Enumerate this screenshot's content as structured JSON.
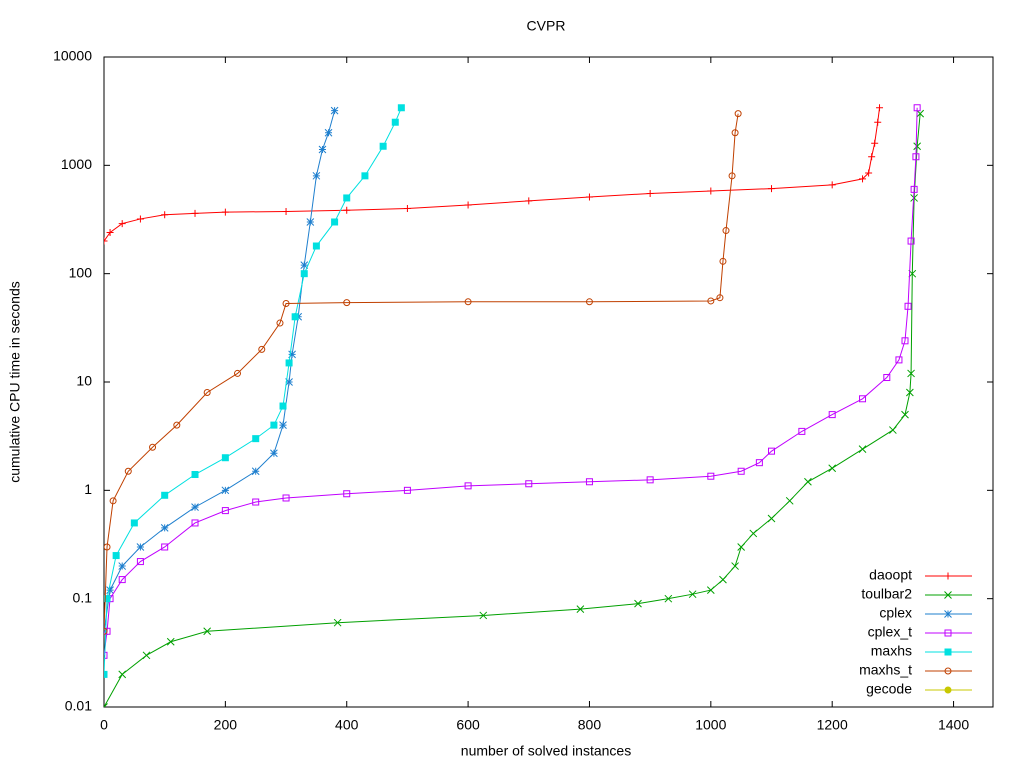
{
  "chart_data": {
    "type": "line",
    "title": "CVPR",
    "x_label": "number of solved instances",
    "y_label": "cumulative CPU time in seconds",
    "xlim": [
      0,
      1465
    ],
    "xticks": [
      0,
      200,
      400,
      600,
      800,
      1000,
      1200,
      1400
    ],
    "ylim": [
      0.01,
      10000
    ],
    "yticks": [
      0.01,
      0.1,
      1,
      10,
      100,
      1000,
      10000
    ],
    "log_y": true,
    "grid": false,
    "legend": "bottom-right",
    "series": [
      {
        "name": "daoopt",
        "color": "#ff0000",
        "marker": "plus",
        "x": [
          0,
          10,
          30,
          60,
          100,
          150,
          200,
          300,
          400,
          500,
          600,
          700,
          800,
          900,
          1000,
          1100,
          1200,
          1250,
          1260,
          1265,
          1270,
          1275,
          1278
        ],
        "values": [
          200,
          240,
          290,
          320,
          350,
          360,
          370,
          375,
          385,
          400,
          430,
          470,
          510,
          550,
          580,
          610,
          660,
          750,
          850,
          1200,
          1600,
          2500,
          3400
        ]
      },
      {
        "name": "toulbar2",
        "color": "#00a000",
        "marker": "cross",
        "x": [
          0,
          30,
          70,
          110,
          170,
          385,
          625,
          785,
          880,
          930,
          970,
          1000,
          1020,
          1040,
          1050,
          1070,
          1100,
          1130,
          1160,
          1200,
          1250,
          1300,
          1320,
          1328,
          1330,
          1332,
          1335,
          1340,
          1345
        ],
        "values": [
          0.01,
          0.02,
          0.03,
          0.04,
          0.05,
          0.06,
          0.07,
          0.08,
          0.09,
          0.1,
          0.11,
          0.12,
          0.15,
          0.2,
          0.3,
          0.4,
          0.55,
          0.8,
          1.2,
          1.6,
          2.4,
          3.6,
          5,
          8,
          12,
          100,
          500,
          1500,
          3000
        ]
      },
      {
        "name": "cplex",
        "color": "#1e7fce",
        "marker": "star",
        "x": [
          0,
          10,
          30,
          60,
          100,
          150,
          200,
          250,
          280,
          295,
          305,
          310,
          320,
          330,
          340,
          350,
          360,
          370,
          380
        ],
        "values": [
          0.05,
          0.12,
          0.2,
          0.3,
          0.45,
          0.7,
          1.0,
          1.5,
          2.2,
          4,
          10,
          18,
          40,
          120,
          300,
          800,
          1400,
          2000,
          3200
        ]
      },
      {
        "name": "cplex_t",
        "color": "#c000ff",
        "marker": "square",
        "x": [
          0,
          5,
          10,
          30,
          60,
          100,
          150,
          200,
          250,
          300,
          400,
          500,
          600,
          700,
          800,
          900,
          1000,
          1050,
          1080,
          1100,
          1150,
          1200,
          1250,
          1290,
          1310,
          1320,
          1325,
          1330,
          1335,
          1338,
          1340
        ],
        "values": [
          0.03,
          0.05,
          0.1,
          0.15,
          0.22,
          0.3,
          0.5,
          0.65,
          0.78,
          0.85,
          0.93,
          1.0,
          1.1,
          1.15,
          1.2,
          1.25,
          1.35,
          1.5,
          1.8,
          2.3,
          3.5,
          5,
          7,
          11,
          16,
          24,
          50,
          200,
          600,
          1200,
          3400
        ]
      },
      {
        "name": "maxhs",
        "color": "#00e0e0",
        "marker": "filled-square",
        "x": [
          0,
          5,
          20,
          50,
          100,
          150,
          200,
          250,
          280,
          295,
          305,
          315,
          330,
          350,
          380,
          400,
          430,
          460,
          480,
          490
        ],
        "values": [
          0.02,
          0.1,
          0.25,
          0.5,
          0.9,
          1.4,
          2,
          3,
          4,
          6,
          15,
          40,
          100,
          180,
          300,
          500,
          800,
          1500,
          2500,
          3400
        ]
      },
      {
        "name": "maxhs_t",
        "color": "#c04000",
        "marker": "circle",
        "x": [
          0,
          5,
          15,
          40,
          80,
          120,
          170,
          220,
          260,
          290,
          300,
          400,
          600,
          800,
          1000,
          1015,
          1020,
          1025,
          1035,
          1040,
          1045
        ],
        "values": [
          0.05,
          0.3,
          0.8,
          1.5,
          2.5,
          4,
          8,
          12,
          20,
          35,
          53,
          54,
          55,
          55,
          56,
          60,
          130,
          250,
          800,
          2000,
          3000
        ]
      },
      {
        "name": "gecode",
        "color": "#c8c800",
        "marker": "filled-circle",
        "x": [],
        "values": []
      }
    ]
  }
}
